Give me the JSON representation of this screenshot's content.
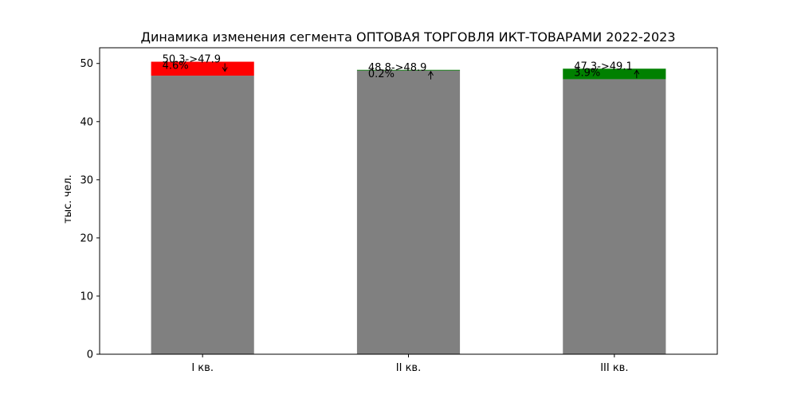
{
  "chart_data": {
    "type": "bar",
    "title": "Динамика изменения сегмента ОПТОВАЯ ТОРГОВЛЯ ИКТ-ТОВАРАМИ 2022-2023",
    "xlabel": "",
    "ylabel": "тыс. чел.",
    "ylim": [
      0,
      52.7
    ],
    "yticks": [
      0,
      10,
      20,
      30,
      40,
      50
    ],
    "grid": false,
    "categories": [
      "I кв.",
      "II кв.",
      "III кв."
    ],
    "bars": [
      {
        "category": "I кв.",
        "from": 50.3,
        "to": 47.9,
        "label": "50.3->47.9",
        "pct_label": "4.6%",
        "direction": "down",
        "change_color": "#ff0000"
      },
      {
        "category": "II кв.",
        "from": 48.8,
        "to": 48.9,
        "label": "48.8->48.9",
        "pct_label": "0.2%",
        "direction": "up",
        "change_color": "#008000"
      },
      {
        "category": "III кв.",
        "from": 47.3,
        "to": 49.1,
        "label": "47.3->49.1",
        "pct_label": "3.9%",
        "direction": "up",
        "change_color": "#008000"
      }
    ],
    "base_color": "#808080"
  }
}
